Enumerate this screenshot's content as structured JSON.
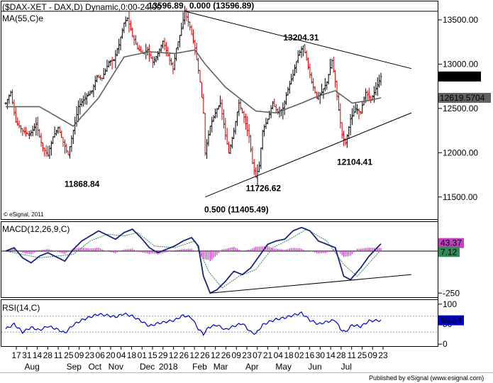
{
  "chart_data": [
    {
      "type": "ohlc",
      "title": "($DAX-XET - DAX,D) Dynamic,0:00-24:00",
      "overlay_label": "MA(55,C)e",
      "watermark": "© eSignal, 2011",
      "ylim": [
        11250,
        13700
      ],
      "yticks": [
        11500,
        12000,
        12500,
        13000,
        13500
      ],
      "ytick_labels": [
        "11500.00",
        "12000.00",
        "12500.00",
        "13000.00",
        "13500.00"
      ],
      "last_price": "12860.40",
      "ma_value": "12619.5704",
      "price_path": [
        [
          0,
          12560
        ],
        [
          3,
          12680
        ],
        [
          6,
          12350
        ],
        [
          10,
          12250
        ],
        [
          14,
          12200
        ],
        [
          18,
          12320
        ],
        [
          22,
          12050
        ],
        [
          25,
          11980
        ],
        [
          28,
          12180
        ],
        [
          31,
          12280
        ],
        [
          34,
          12120
        ],
        [
          37,
          11980
        ],
        [
          39,
          12160
        ],
        [
          43,
          12520
        ],
        [
          47,
          12620
        ],
        [
          51,
          12700
        ],
        [
          54,
          12860
        ],
        [
          57,
          12840
        ],
        [
          61,
          13020
        ],
        [
          64,
          13050
        ],
        [
          67,
          13220
        ],
        [
          70,
          13460
        ],
        [
          72,
          13520
        ],
        [
          75,
          13320
        ],
        [
          78,
          13180
        ],
        [
          81,
          13120
        ],
        [
          84,
          13160
        ],
        [
          87,
          13020
        ],
        [
          90,
          13120
        ],
        [
          93,
          13260
        ],
        [
          96,
          13100
        ],
        [
          99,
          12950
        ],
        [
          101,
          13180
        ],
        [
          104,
          13400
        ],
        [
          106,
          13596.89
        ],
        [
          109,
          13420
        ],
        [
          112,
          13180
        ],
        [
          115,
          12800
        ],
        [
          117,
          12450
        ],
        [
          118,
          12000
        ],
        [
          121,
          12300
        ],
        [
          124,
          12450
        ],
        [
          127,
          12560
        ],
        [
          130,
          12200
        ],
        [
          132,
          12000
        ],
        [
          135,
          12250
        ],
        [
          138,
          12560
        ],
        [
          141,
          12400
        ],
        [
          144,
          12180
        ],
        [
          146,
          11880
        ],
        [
          148,
          11726.62
        ],
        [
          150,
          11850
        ],
        [
          152,
          12250
        ],
        [
          155,
          12380
        ],
        [
          158,
          12560
        ],
        [
          161,
          12450
        ],
        [
          164,
          12500
        ],
        [
          167,
          12720
        ],
        [
          170,
          12880
        ],
        [
          173,
          13100
        ],
        [
          176,
          13204.31
        ],
        [
          178,
          13050
        ],
        [
          181,
          12800
        ],
        [
          184,
          12620
        ],
        [
          187,
          12680
        ],
        [
          190,
          12800
        ],
        [
          193,
          13040
        ],
        [
          195,
          12800
        ],
        [
          197,
          12480
        ],
        [
          199,
          12200
        ],
        [
          201,
          12104.41
        ],
        [
          204,
          12380
        ],
        [
          207,
          12500
        ],
        [
          210,
          12460
        ],
        [
          213,
          12680
        ],
        [
          216,
          12600
        ],
        [
          219,
          12720
        ],
        [
          222,
          12860
        ]
      ],
      "ma_path": [
        [
          0,
          12520
        ],
        [
          20,
          12520
        ],
        [
          40,
          12300
        ],
        [
          55,
          12620
        ],
        [
          70,
          13080
        ],
        [
          85,
          13140
        ],
        [
          100,
          13120
        ],
        [
          112,
          13160
        ],
        [
          118,
          13000
        ],
        [
          130,
          12740
        ],
        [
          148,
          12470
        ],
        [
          160,
          12450
        ],
        [
          175,
          12560
        ],
        [
          185,
          12640
        ],
        [
          195,
          12700
        ],
        [
          205,
          12560
        ],
        [
          215,
          12590
        ],
        [
          222,
          12619.5704
        ]
      ],
      "annotations": [
        {
          "text": "13596.89",
          "i": 106,
          "value": 13596.89
        },
        {
          "text": "0.000 (13596.89)",
          "i": 112,
          "value": 13596.89
        },
        {
          "text": "13204.31",
          "i": 176,
          "value": 13204.31
        },
        {
          "text": "11868.84",
          "i": 39,
          "value": 11868.84
        },
        {
          "text": "11726.62",
          "i": 148,
          "value": 11726.62
        },
        {
          "text": "12104.41",
          "i": 201,
          "value": 12104.41
        },
        {
          "text": "0.500 (11405.49)",
          "i": 120,
          "value": 11405.49
        }
      ],
      "fib_0_level": 13596.89,
      "fib_half_level": 11405.49,
      "upper_trendline": [
        [
          106,
          13596.89
        ],
        [
          240,
          12950
        ]
      ],
      "lower_trendline": [
        [
          118,
          11500
        ],
        [
          240,
          12450
        ]
      ]
    },
    {
      "type": "line",
      "label": "MACD(12,26,9,C)",
      "ylim": [
        -270,
        160
      ],
      "ytick_labels": [
        "-250"
      ],
      "ytick_values": [
        -250
      ],
      "value_labels": [
        "43.37",
        "7.12"
      ],
      "macd_path": [
        [
          0,
          0
        ],
        [
          5,
          20
        ],
        [
          10,
          -40
        ],
        [
          15,
          -70
        ],
        [
          20,
          -30
        ],
        [
          25,
          -10
        ],
        [
          30,
          -35
        ],
        [
          35,
          -60
        ],
        [
          40,
          10
        ],
        [
          45,
          60
        ],
        [
          50,
          90
        ],
        [
          55,
          120
        ],
        [
          60,
          95
        ],
        [
          65,
          70
        ],
        [
          70,
          110
        ],
        [
          75,
          130
        ],
        [
          80,
          80
        ],
        [
          85,
          20
        ],
        [
          90,
          -10
        ],
        [
          95,
          10
        ],
        [
          100,
          30
        ],
        [
          105,
          60
        ],
        [
          110,
          80
        ],
        [
          114,
          30
        ],
        [
          117,
          -150
        ],
        [
          121,
          -250
        ],
        [
          125,
          -230
        ],
        [
          130,
          -180
        ],
        [
          135,
          -120
        ],
        [
          140,
          -140
        ],
        [
          145,
          -100
        ],
        [
          150,
          -30
        ],
        [
          155,
          40
        ],
        [
          160,
          60
        ],
        [
          165,
          70
        ],
        [
          170,
          120
        ],
        [
          175,
          140
        ],
        [
          180,
          120
        ],
        [
          185,
          60
        ],
        [
          190,
          40
        ],
        [
          195,
          20
        ],
        [
          200,
          -150
        ],
        [
          204,
          -170
        ],
        [
          210,
          -100
        ],
        [
          215,
          -30
        ],
        [
          222,
          43.37
        ]
      ],
      "signal_path": [
        [
          0,
          0
        ],
        [
          10,
          -20
        ],
        [
          20,
          -40
        ],
        [
          30,
          -30
        ],
        [
          40,
          -20
        ],
        [
          50,
          60
        ],
        [
          60,
          100
        ],
        [
          70,
          90
        ],
        [
          78,
          110
        ],
        [
          88,
          30
        ],
        [
          100,
          20
        ],
        [
          112,
          60
        ],
        [
          120,
          -120
        ],
        [
          128,
          -220
        ],
        [
          138,
          -150
        ],
        [
          148,
          -110
        ],
        [
          158,
          20
        ],
        [
          168,
          70
        ],
        [
          178,
          130
        ],
        [
          190,
          60
        ],
        [
          200,
          -80
        ],
        [
          208,
          -150
        ],
        [
          216,
          -60
        ],
        [
          222,
          7.12
        ]
      ],
      "macd_trendline": [
        [
          121,
          -250
        ],
        [
          240,
          -140
        ]
      ]
    },
    {
      "type": "line",
      "label": "RSI(14,C)",
      "ylim": [
        -5,
        105
      ],
      "yticks": [
        0,
        50,
        100
      ],
      "ytick_labels": [
        "0",
        "50",
        "100"
      ],
      "value_label": "59.54",
      "rsi_path": [
        [
          0,
          38
        ],
        [
          5,
          50
        ],
        [
          10,
          30
        ],
        [
          15,
          42
        ],
        [
          20,
          35
        ],
        [
          25,
          45
        ],
        [
          30,
          38
        ],
        [
          35,
          28
        ],
        [
          40,
          48
        ],
        [
          45,
          60
        ],
        [
          50,
          68
        ],
        [
          55,
          75
        ],
        [
          60,
          72
        ],
        [
          65,
          68
        ],
        [
          70,
          76
        ],
        [
          75,
          70
        ],
        [
          80,
          58
        ],
        [
          85,
          45
        ],
        [
          90,
          52
        ],
        [
          95,
          56
        ],
        [
          100,
          60
        ],
        [
          105,
          72
        ],
        [
          110,
          66
        ],
        [
          114,
          38
        ],
        [
          117,
          25
        ],
        [
          120,
          42
        ],
        [
          125,
          48
        ],
        [
          130,
          36
        ],
        [
          135,
          45
        ],
        [
          140,
          52
        ],
        [
          145,
          30
        ],
        [
          148,
          26
        ],
        [
          152,
          48
        ],
        [
          156,
          56
        ],
        [
          160,
          62
        ],
        [
          165,
          66
        ],
        [
          170,
          72
        ],
        [
          175,
          78
        ],
        [
          180,
          60
        ],
        [
          185,
          50
        ],
        [
          190,
          56
        ],
        [
          195,
          60
        ],
        [
          198,
          38
        ],
        [
          201,
          30
        ],
        [
          205,
          48
        ],
        [
          210,
          44
        ],
        [
          215,
          58
        ],
        [
          222,
          59.54
        ]
      ]
    }
  ],
  "x_axis": {
    "day_ticks": [
      {
        "label": "17",
        "i": 3
      },
      {
        "label": "31",
        "i": 13
      },
      {
        "label": "14",
        "i": 23
      },
      {
        "label": "28",
        "i": 33
      },
      {
        "label": "11",
        "i": 43
      },
      {
        "label": "25",
        "i": 53
      },
      {
        "label": "09",
        "i": 63
      },
      {
        "label": "23",
        "i": 73
      },
      {
        "label": "06",
        "i": 83
      },
      {
        "label": "20",
        "i": 93
      },
      {
        "label": "04",
        "i": 103
      },
      {
        "label": "18",
        "i": 113
      },
      {
        "label": "01",
        "i": 123
      },
      {
        "label": "15",
        "i": 133
      },
      {
        "label": "29",
        "i": 143
      },
      {
        "label": "12",
        "i": 153
      },
      {
        "label": "26",
        "i": 163
      },
      {
        "label": "12",
        "i": 173
      },
      {
        "label": "26",
        "i": 183
      },
      {
        "label": "12",
        "i": 193
      },
      {
        "label": "26",
        "i": 203
      },
      {
        "label": "09",
        "i": 213
      },
      {
        "label": "23",
        "i": 223
      },
      {
        "label": "07",
        "i": 233
      },
      {
        "label": "21",
        "i": 243
      },
      {
        "label": "04",
        "i": 253
      },
      {
        "label": "18",
        "i": 263
      },
      {
        "label": "02",
        "i": 273
      },
      {
        "label": "16",
        "i": 283
      },
      {
        "label": "30",
        "i": 293
      },
      {
        "label": "14",
        "i": 303
      },
      {
        "label": "28",
        "i": 313
      },
      {
        "label": "11",
        "i": 323
      },
      {
        "label": "25",
        "i": 333
      },
      {
        "label": "09",
        "i": 343
      },
      {
        "label": "23",
        "i": 353
      }
    ],
    "month_ticks": [
      {
        "label": "Aug",
        "i": 18
      },
      {
        "label": "Sep",
        "i": 58
      },
      {
        "label": "Oct",
        "i": 78
      },
      {
        "label": "Nov",
        "i": 98
      },
      {
        "label": "Dec",
        "i": 128
      },
      {
        "label": "2018",
        "i": 148
      },
      {
        "label": "Feb",
        "i": 178
      },
      {
        "label": "Mar",
        "i": 198
      },
      {
        "label": "Apr",
        "i": 228
      },
      {
        "label": "May",
        "i": 258
      },
      {
        "label": "Jun",
        "i": 288
      },
      {
        "label": "Jul",
        "i": 318
      }
    ]
  },
  "footer": "Published by eSignal (www.esignal.com)"
}
